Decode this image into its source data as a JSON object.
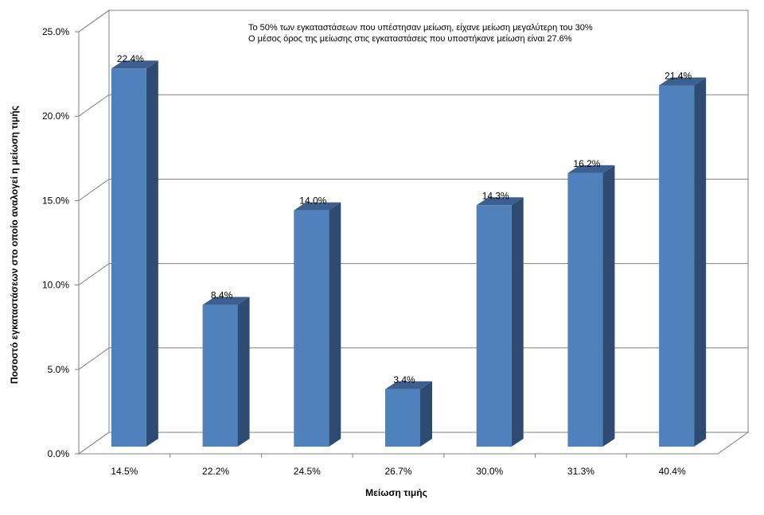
{
  "chart_data": {
    "type": "bar",
    "style": "3d-column",
    "categories": [
      "14.5%",
      "22.2%",
      "24.5%",
      "26.7%",
      "30.0%",
      "31.3%",
      "40.4%"
    ],
    "values": [
      22.4,
      8.4,
      14.0,
      3.4,
      14.3,
      16.2,
      21.4
    ],
    "data_labels": [
      "22.4%",
      "8.4%",
      "14.0%",
      "3.4%",
      "14.3%",
      "16.2%",
      "21.4%"
    ],
    "title": "",
    "xlabel": "Μείωση τιμής",
    "ylabel": "Ποσοστό εγκαταστάσεων στο οποίο αναλογεί η μείωση τιμής",
    "ylim": [
      0,
      25
    ],
    "yticks": [
      0,
      5,
      10,
      15,
      20,
      25
    ],
    "ytick_labels": [
      "0.0%",
      "5.0%",
      "10.0%",
      "15.0%",
      "20.0%",
      "25.0%"
    ],
    "grid": true,
    "legend": "none",
    "annotations": [
      "Το 50% των εγκαταστάσεων που υπέστησαν μείωση, είχανε μείωση μεγαλύτερη του 30%",
      "Ο μέσος όρος της μείωσης στις εγκαταστάσεις που υποστήκανε μείωση είναι 27.6%"
    ],
    "colors": {
      "bar_front": "#4f81bd",
      "bar_side": "#2f4b71",
      "bar_top": "#3b5f8f",
      "grid": "#808080",
      "wall": "#ffffff"
    }
  }
}
